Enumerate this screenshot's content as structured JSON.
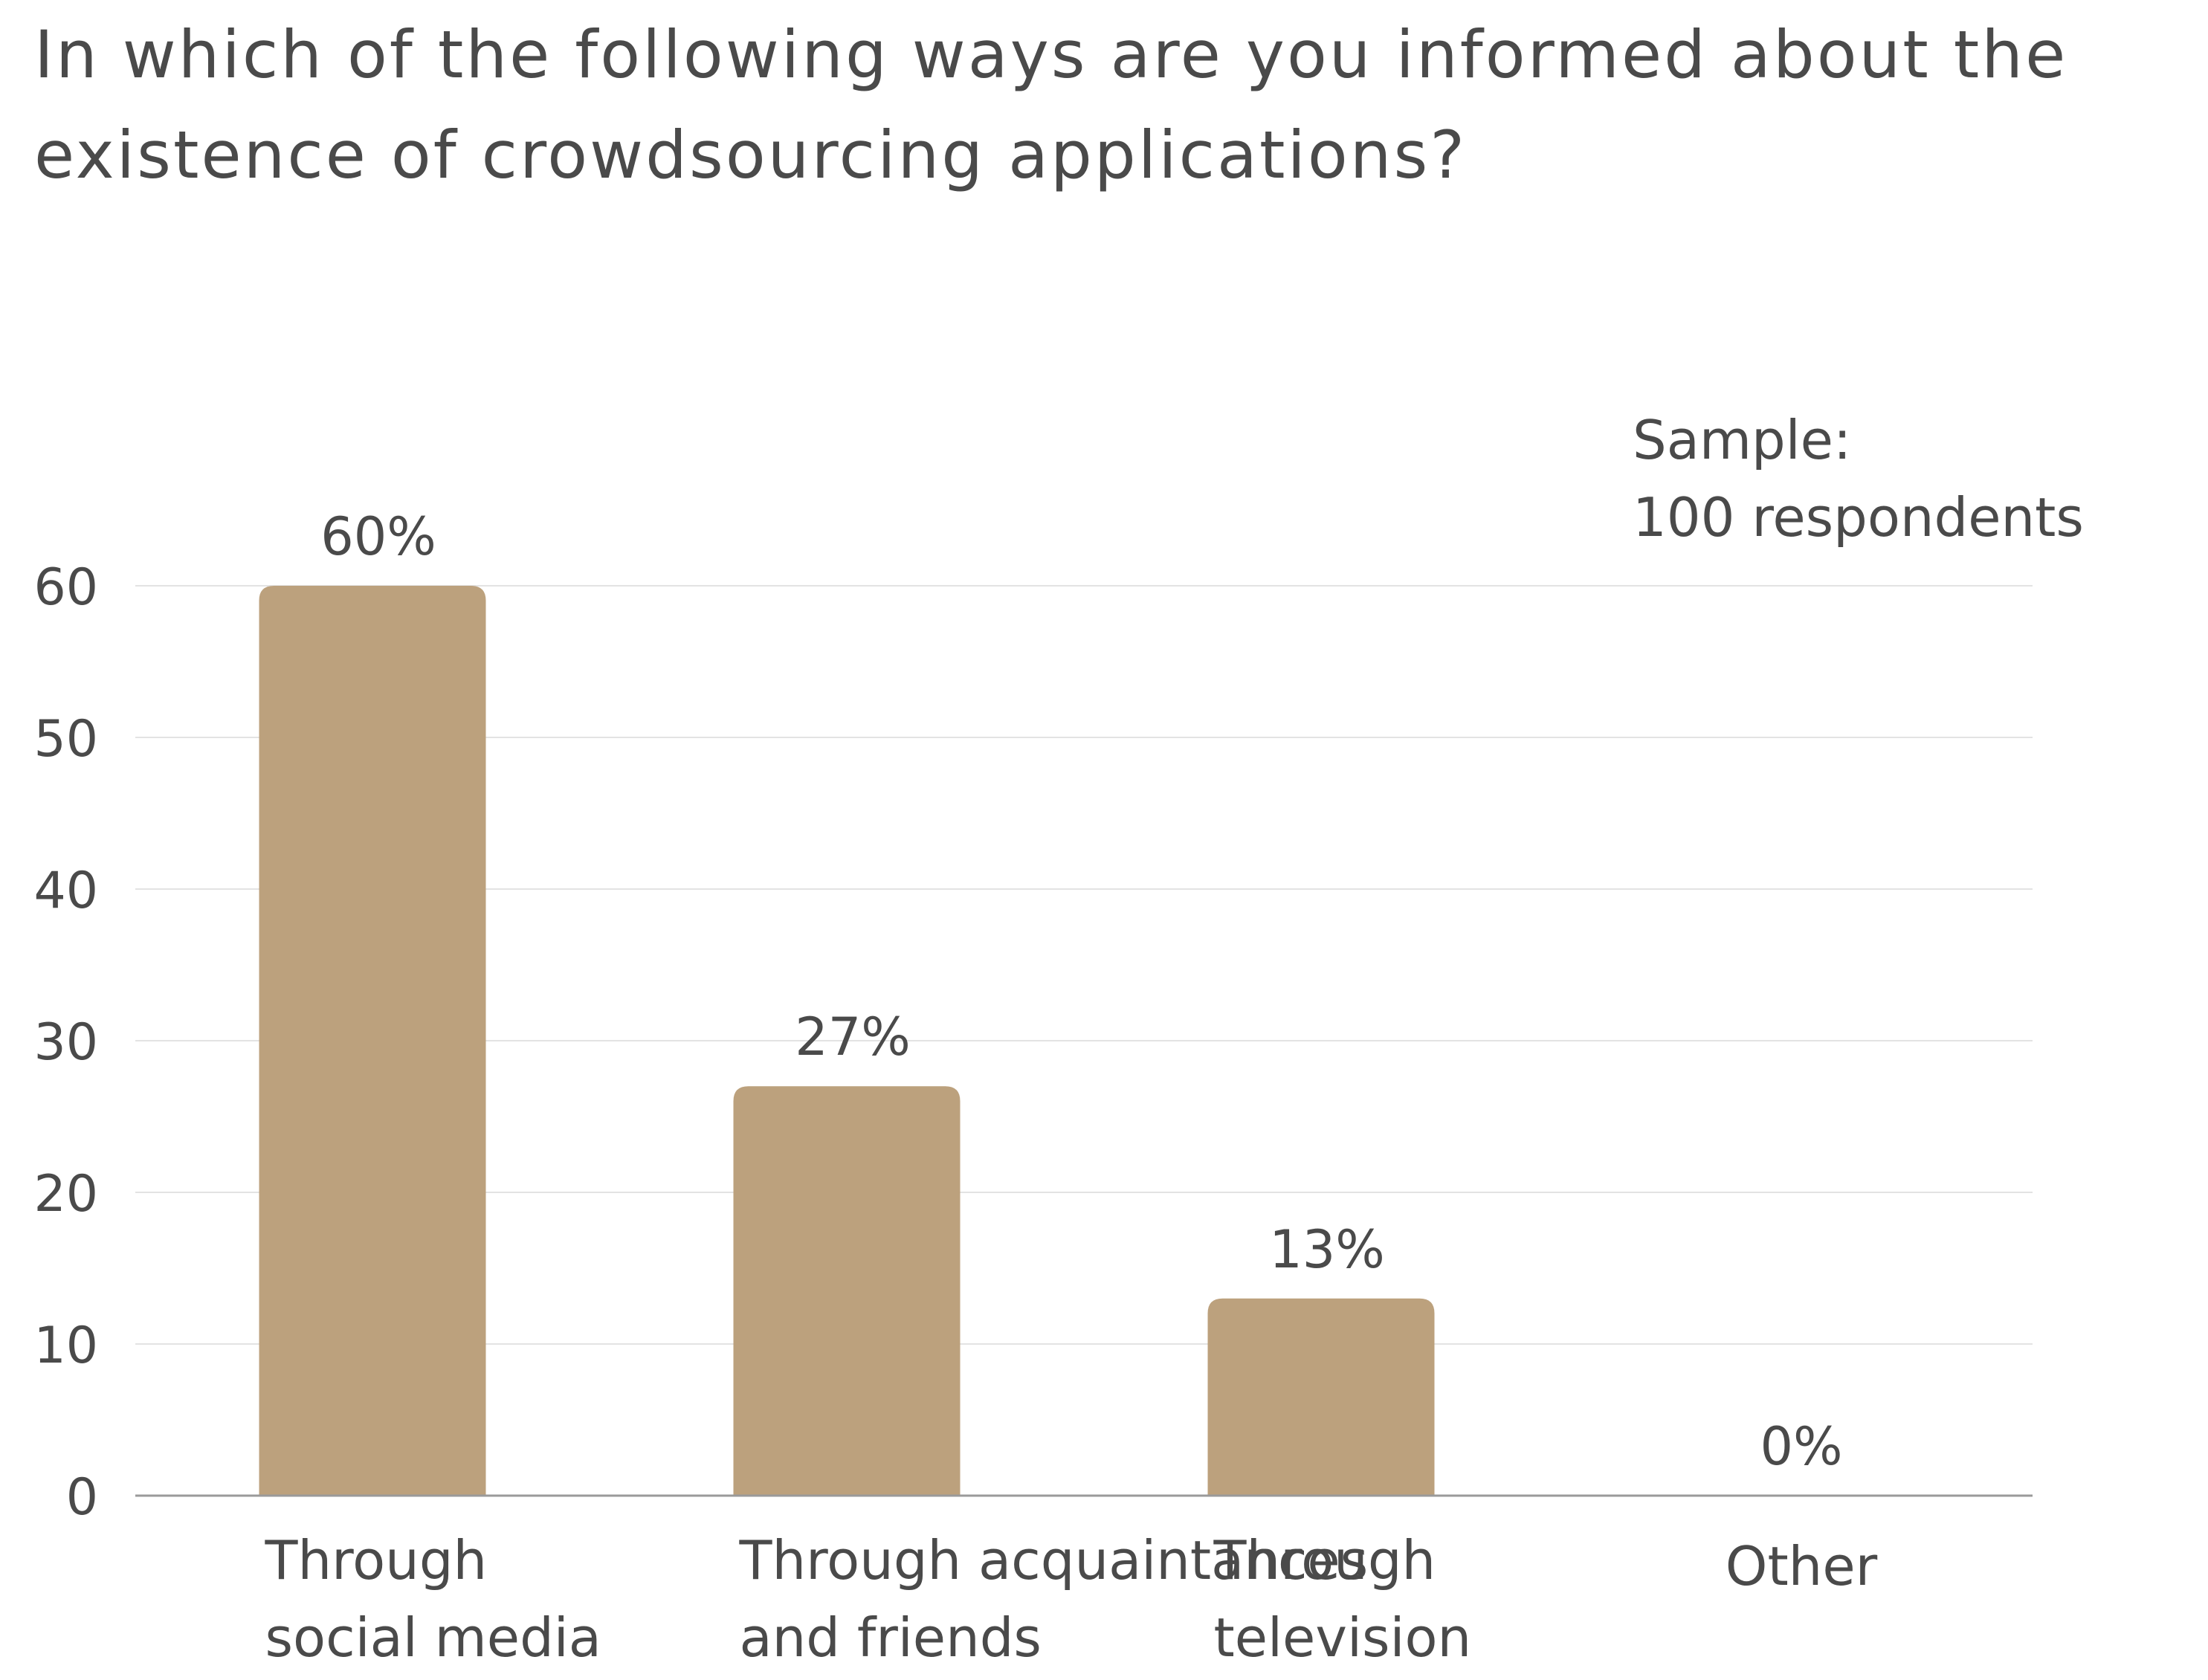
{
  "chart_data": {
    "type": "bar",
    "title_lines": [
      "In which of the following ways are you informed about the",
      "existence of crowdsourcing applications?"
    ],
    "sample_lines": [
      "Sample:",
      "100 respondents"
    ],
    "categories": [
      {
        "lines": [
          "Through",
          "social media"
        ],
        "value": 60,
        "label": "60%"
      },
      {
        "lines": [
          "Through acquaintances",
          "and friends"
        ],
        "value": 27,
        "label": "27%"
      },
      {
        "lines": [
          "Through",
          "television"
        ],
        "value": 13,
        "label": "13%"
      },
      {
        "lines": [
          "Other"
        ],
        "value": 0,
        "label": "0%"
      }
    ],
    "y_ticks": [
      0,
      10,
      20,
      30,
      40,
      50,
      60
    ],
    "ylim": [
      0,
      60
    ],
    "grid": true,
    "xlabel": "",
    "ylabel": "",
    "bar_color": "#bca17d",
    "grid_color": "#e3e3e3",
    "axis_color": "#9a9a9a"
  }
}
